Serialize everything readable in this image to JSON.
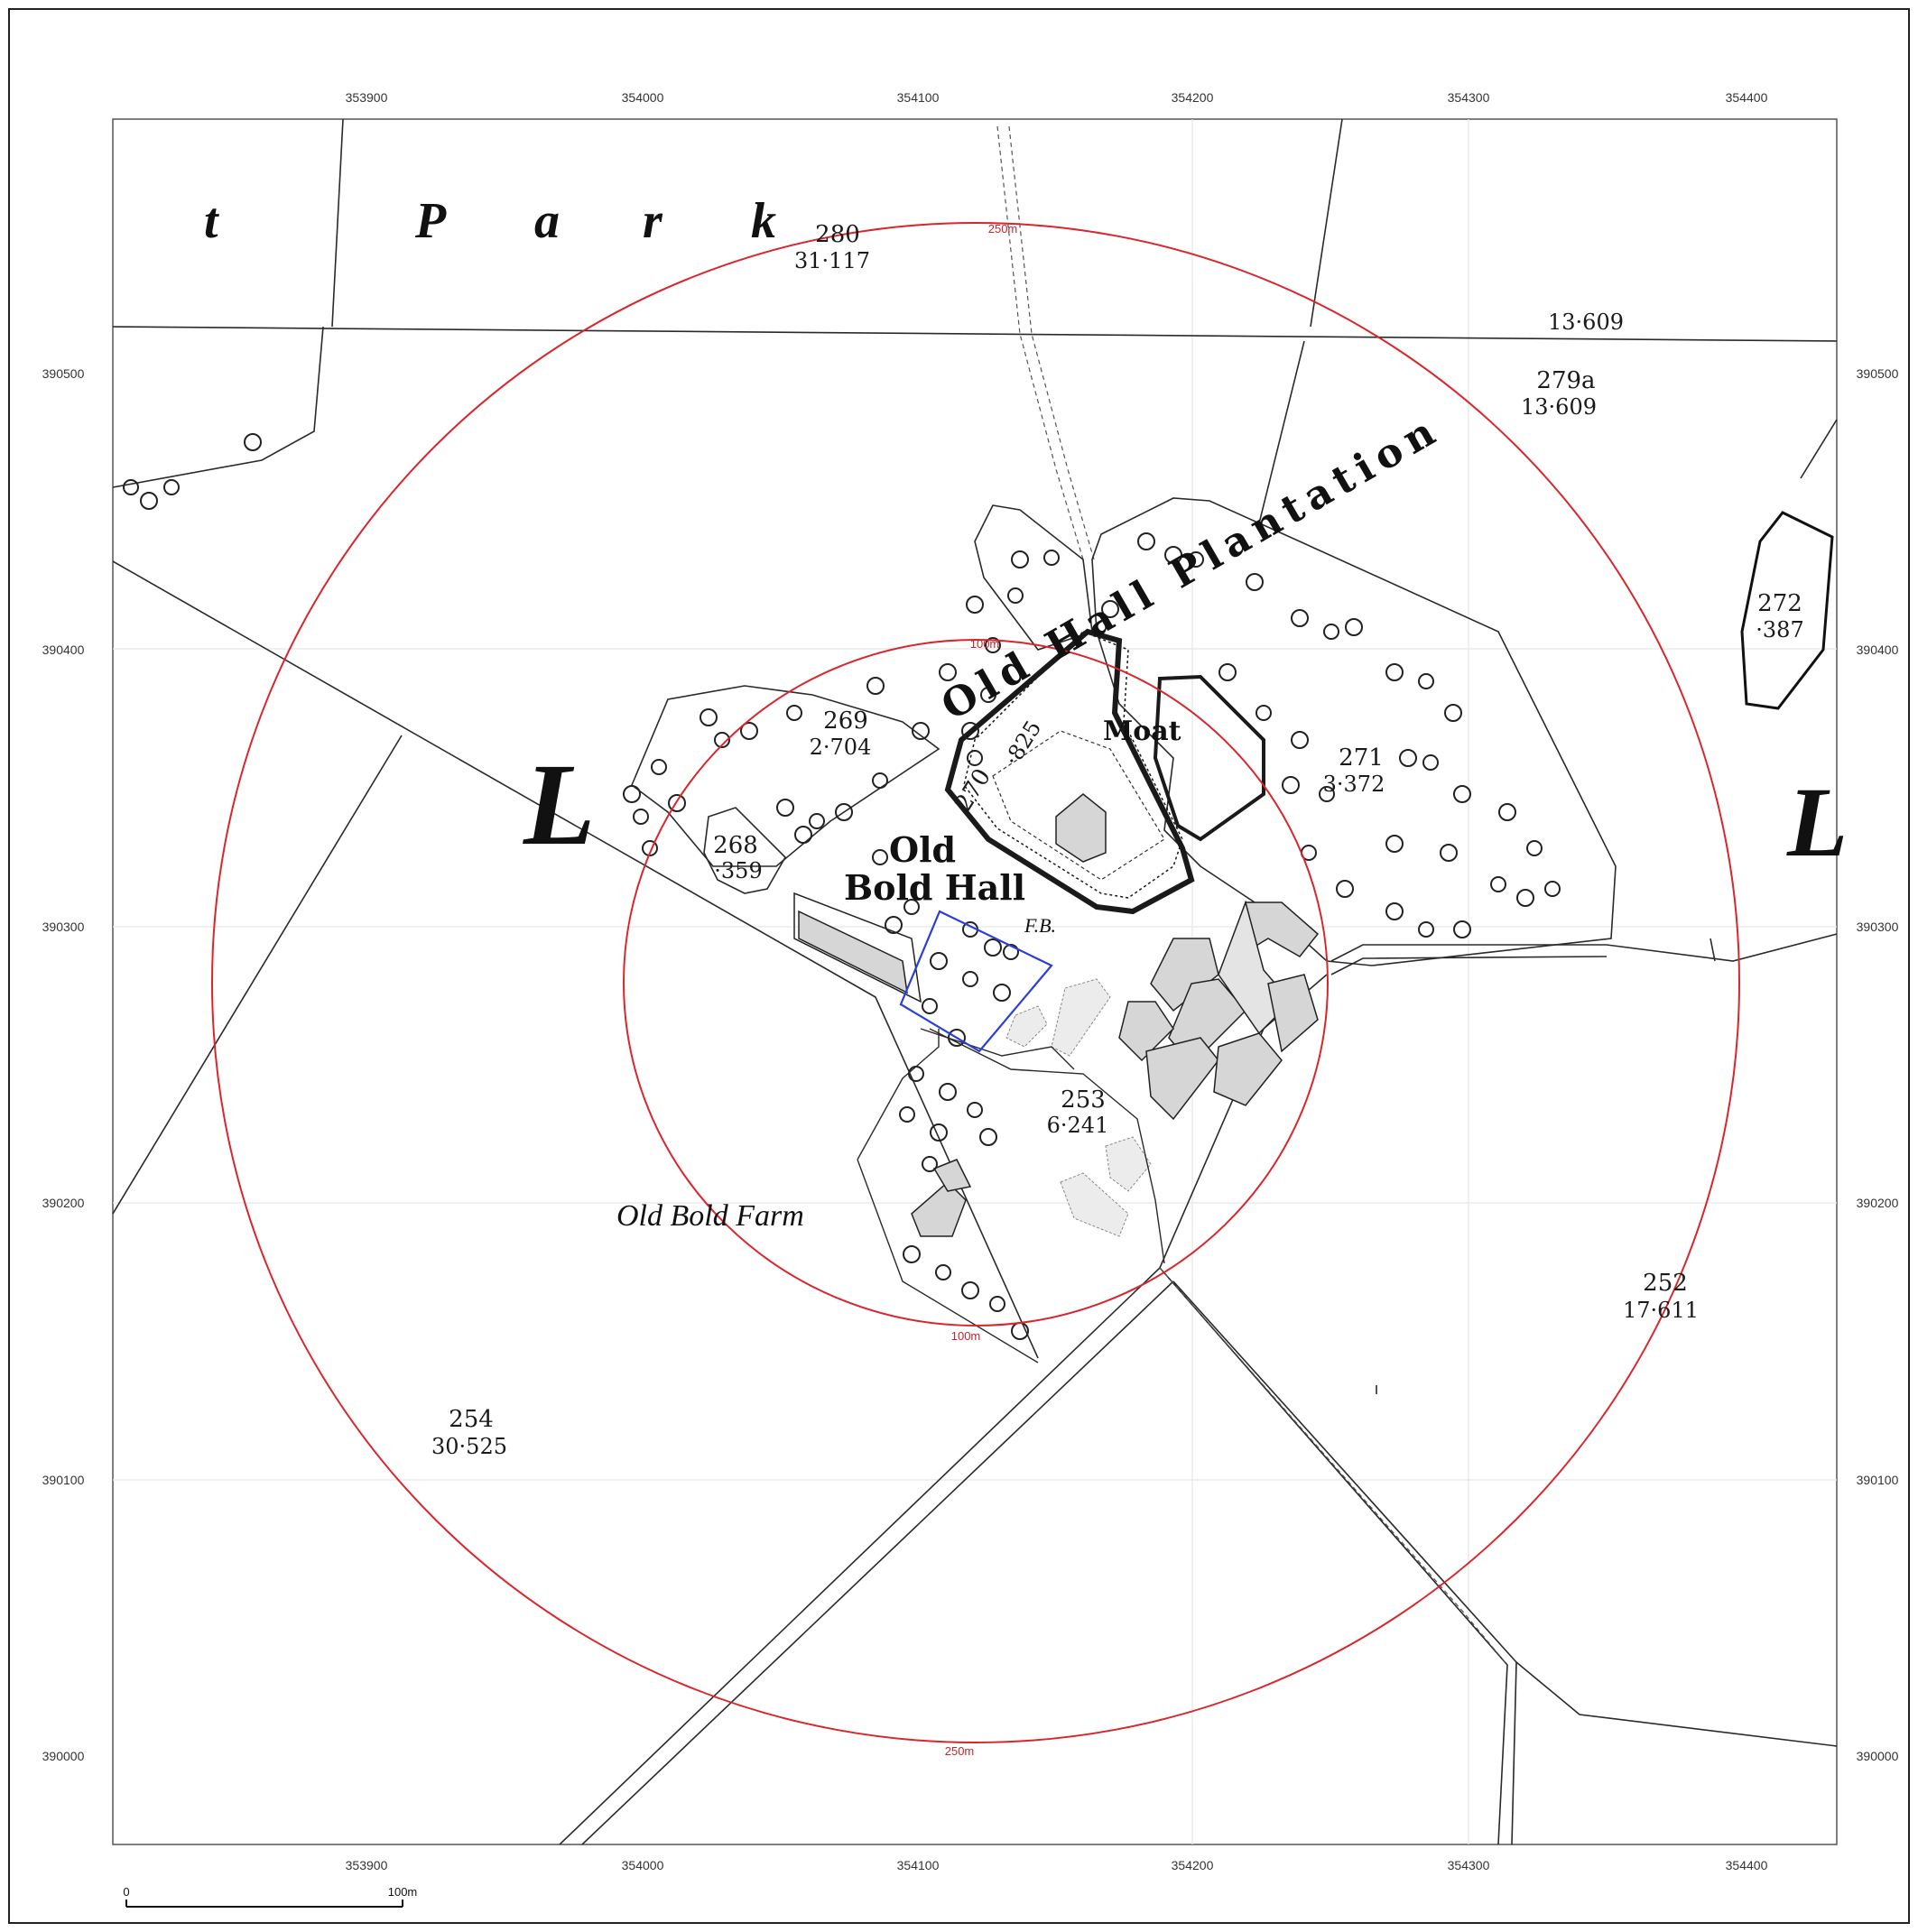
{
  "map": {
    "easting_labels": [
      "353900",
      "354000",
      "354100",
      "354200",
      "354300",
      "354400"
    ],
    "northing_labels": [
      "390500",
      "390400",
      "390300",
      "390200",
      "390100",
      "390000"
    ],
    "buffer_rings": [
      {
        "radius_label": "250m",
        "color": "#d9262c"
      },
      {
        "radius_label": "100m",
        "color": "#d9262c"
      }
    ],
    "site_boundary_color": "#2a3fd6",
    "place_names": {
      "park_letters": [
        "t",
        "P",
        "a",
        "r",
        "k"
      ],
      "old_hall_plantation": "Old Hall Plantation",
      "old_bold_hall_line1": "Old",
      "old_bold_hall_line2": "Bold Hall",
      "moat": "Moat",
      "fb": "F.B.",
      "old_bold_farm": "Old Bold Farm",
      "left_letter": "L",
      "right_letter": "L"
    },
    "parcels": [
      {
        "id": "p280",
        "number": "280",
        "area": "31·117"
      },
      {
        "id": "p279a",
        "number": "279a",
        "area": "13·609"
      },
      {
        "id": "p13609",
        "number": "",
        "area": "13·609"
      },
      {
        "id": "p272",
        "number": "272",
        "area": "·387"
      },
      {
        "id": "p269",
        "number": "269",
        "area": "2·704"
      },
      {
        "id": "p270",
        "number": "270",
        "area": "·825"
      },
      {
        "id": "p271",
        "number": "271",
        "area": "3·372"
      },
      {
        "id": "p268",
        "number": "268",
        "area": "·359"
      },
      {
        "id": "p253",
        "number": "253",
        "area": "6·241"
      },
      {
        "id": "p252",
        "number": "252",
        "area": "17·611"
      },
      {
        "id": "p254",
        "number": "254",
        "area": "30·525"
      }
    ],
    "scale_bar": {
      "start": "0",
      "end": "100m"
    }
  }
}
